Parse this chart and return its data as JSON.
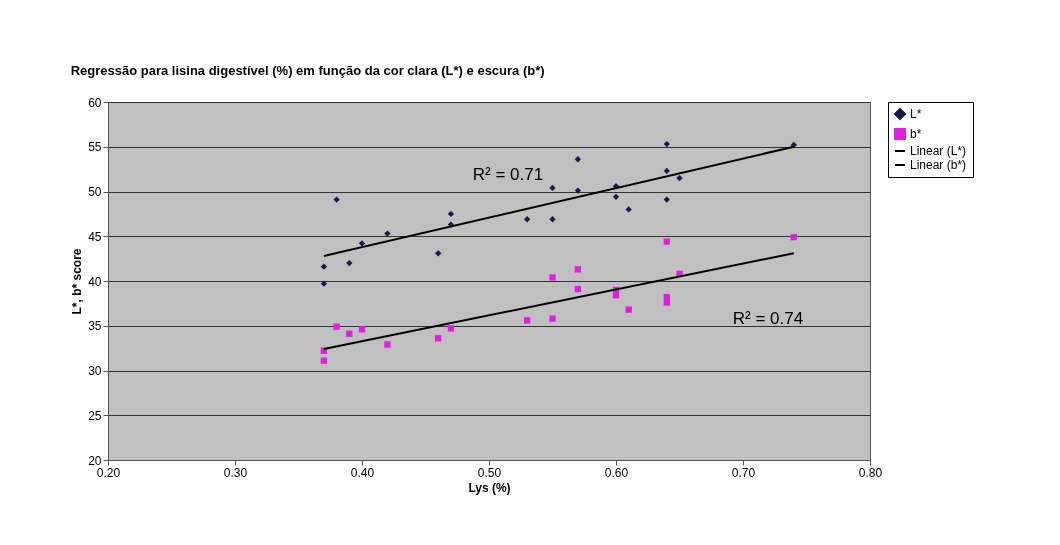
{
  "chart_data": {
    "type": "scatter",
    "title": "Regressão para lisina digestível (%) em função da cor clara (L*) e escura (b*)",
    "xlabel": "Lys (%)",
    "ylabel": "L*, b* score",
    "xlim": [
      0.2,
      0.8
    ],
    "xticks": [
      {
        "value": 0.2,
        "label": "0.20"
      },
      {
        "value": 0.3,
        "label": "0.30"
      },
      {
        "value": 0.4,
        "label": "0.40"
      },
      {
        "value": 0.5,
        "label": "0.50"
      },
      {
        "value": 0.6,
        "label": "0.60"
      },
      {
        "value": 0.7,
        "label": "0.70"
      },
      {
        "value": 0.8,
        "label": "0.80"
      }
    ],
    "ylim": [
      20,
      60
    ],
    "yticks": [
      20,
      25,
      30,
      35,
      40,
      45,
      50,
      55,
      60
    ],
    "grid": "y",
    "legend": "right",
    "series": [
      {
        "name": "L*",
        "type": "scatter",
        "marker": "diamond",
        "color": "#1a1a4e",
        "x": [
          0.37,
          0.37,
          0.38,
          0.39,
          0.4,
          0.42,
          0.46,
          0.47,
          0.47,
          0.53,
          0.55,
          0.55,
          0.57,
          0.57,
          0.6,
          0.6,
          0.61,
          0.64,
          0.64,
          0.64,
          0.65,
          0.74
        ],
        "values": [
          41.6,
          39.7,
          49.1,
          42.0,
          44.2,
          45.3,
          43.1,
          47.5,
          46.3,
          46.9,
          50.4,
          46.9,
          53.6,
          50.1,
          50.6,
          49.4,
          48.0,
          55.3,
          52.3,
          49.1,
          51.5,
          55.2
        ]
      },
      {
        "name": "b*",
        "type": "scatter",
        "marker": "square",
        "color": "#e020e0",
        "x": [
          0.37,
          0.37,
          0.38,
          0.39,
          0.4,
          0.42,
          0.46,
          0.47,
          0.53,
          0.55,
          0.55,
          0.57,
          0.57,
          0.6,
          0.6,
          0.61,
          0.64,
          0.64,
          0.64,
          0.65,
          0.74
        ],
        "values": [
          32.2,
          31.1,
          34.9,
          34.1,
          34.6,
          32.9,
          33.6,
          34.7,
          35.6,
          35.8,
          40.4,
          41.3,
          39.1,
          39.0,
          38.4,
          36.8,
          44.4,
          38.2,
          37.6,
          40.8,
          44.9
        ]
      },
      {
        "name": "Linear (L*)",
        "type": "line",
        "marker": "none",
        "line_style": "solid",
        "color": "#000000",
        "x": [
          0.37,
          0.74
        ],
        "values": [
          42.8,
          55.0
        ]
      },
      {
        "name": "Linear (b*)",
        "type": "line",
        "marker": "none",
        "line_style": "solid",
        "color": "#000000",
        "x": [
          0.37,
          0.74
        ],
        "values": [
          32.4,
          43.1
        ]
      }
    ],
    "annotations": [
      "R² = 0.71",
      "R² = 0.74"
    ]
  }
}
